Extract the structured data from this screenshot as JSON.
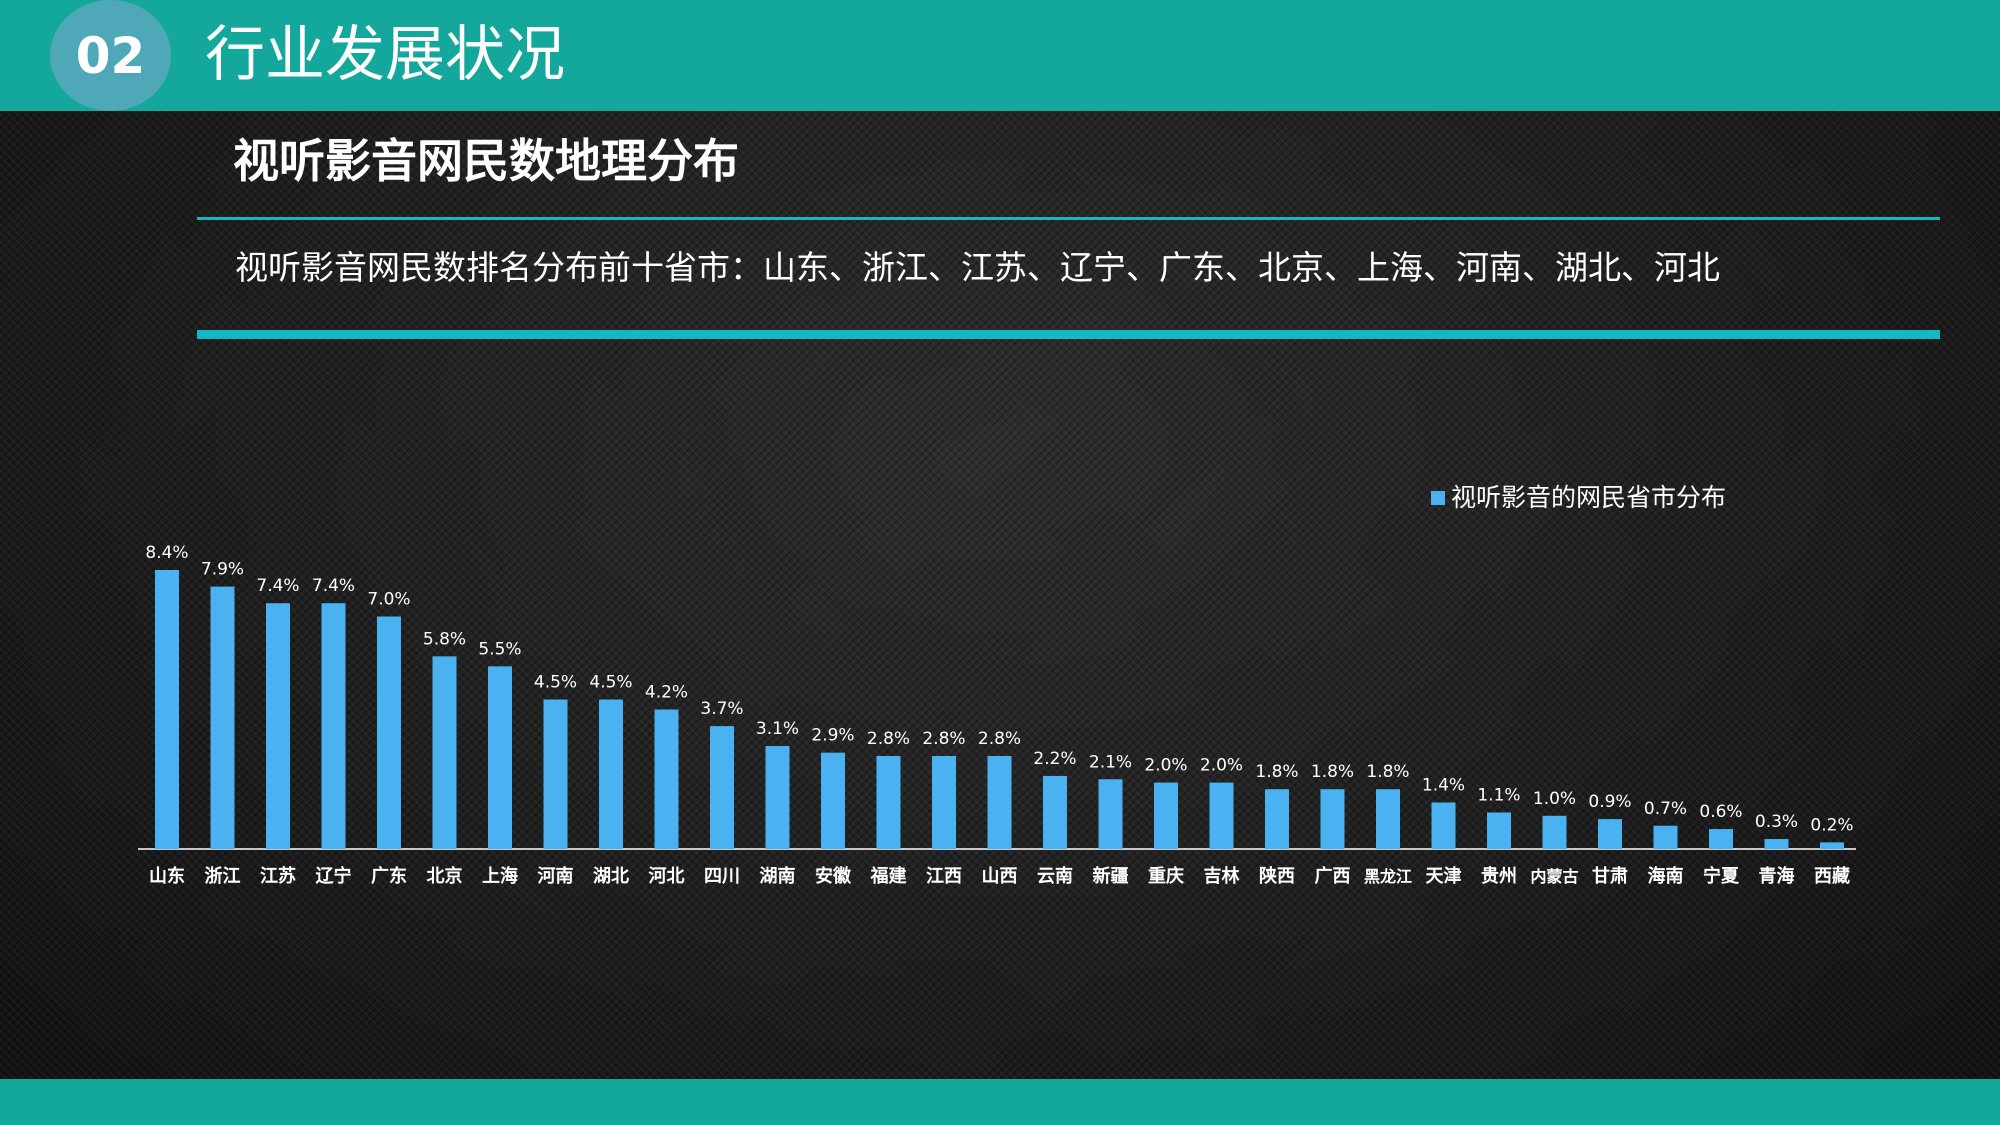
{
  "header": {
    "section_number": "02",
    "section_title": "行业发展状况"
  },
  "subtitle": "视听影音网民数地理分布",
  "summary": "视听影音网民数排名分布前十省市：山东、浙江、江苏、辽宁、广东、北京、上海、河南、湖北、河北",
  "colors": {
    "header_bar": "#14a79c",
    "bar": "#4ab2f1",
    "line_accent": "#14b7c4"
  },
  "chart_data": {
    "type": "bar",
    "categories": [
      "山东",
      "浙江",
      "江苏",
      "辽宁",
      "广东",
      "北京",
      "上海",
      "河南",
      "湖北",
      "河北",
      "四川",
      "湖南",
      "安徽",
      "福建",
      "江西",
      "山西",
      "云南",
      "新疆",
      "重庆",
      "吉林",
      "陕西",
      "广西",
      "黑龙江",
      "天津",
      "贵州",
      "内蒙古",
      "甘肃",
      "海南",
      "宁夏",
      "青海",
      "西藏"
    ],
    "series": [
      {
        "name": "视听影音的网民省市分布",
        "values": [
          8.4,
          7.9,
          7.4,
          7.4,
          7.0,
          5.8,
          5.5,
          4.5,
          4.5,
          4.2,
          3.7,
          3.1,
          2.9,
          2.8,
          2.8,
          2.8,
          2.2,
          2.1,
          2.0,
          2.0,
          1.8,
          1.8,
          1.8,
          1.4,
          1.1,
          1.0,
          0.9,
          0.7,
          0.6,
          0.3,
          0.2
        ],
        "labels": [
          "8.4%",
          "7.9%",
          "7.4%",
          "7.4%",
          "7.0%",
          "5.8%",
          "5.5%",
          "4.5%",
          "4.5%",
          "4.2%",
          "3.7%",
          "3.1%",
          "2.9%",
          "2.8%",
          "2.8%",
          "2.8%",
          "2.2%",
          "2.1%",
          "2.0%",
          "2.0%",
          "1.8%",
          "1.8%",
          "1.8%",
          "1.4%",
          "1.1%",
          "1.0%",
          "0.9%",
          "0.7%",
          "0.6%",
          "0.3%",
          "0.2%"
        ]
      }
    ],
    "unit": "%",
    "ylim": [
      0,
      8.4
    ],
    "legend": "top-right",
    "grid": false
  }
}
